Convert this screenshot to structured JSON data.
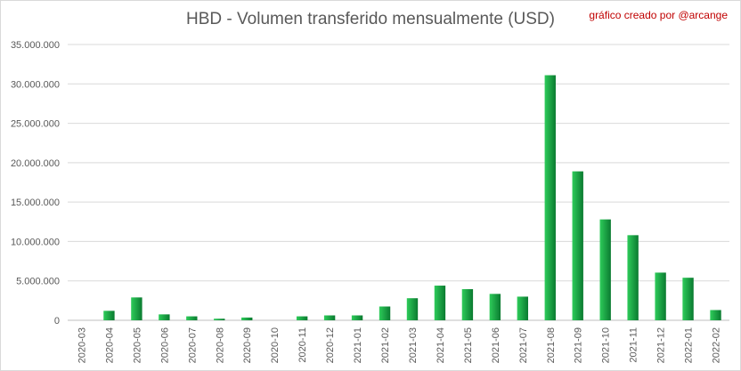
{
  "chart_data": {
    "type": "bar",
    "title": "HBD - Volumen transferido mensualmente (USD)",
    "credit": "gráfico creado por @arcange",
    "xlabel": "",
    "ylabel": "",
    "ylim": [
      0,
      35000000
    ],
    "yticks": [
      0,
      5000000,
      10000000,
      15000000,
      20000000,
      25000000,
      30000000,
      35000000
    ],
    "ytick_labels": [
      "0",
      "5.000.000",
      "10.000.000",
      "15.000.000",
      "20.000.000",
      "25.000.000",
      "30.000.000",
      "35.000.000"
    ],
    "grid": true,
    "legend": "none",
    "bar_color_light": "#2ecc5a",
    "bar_color_dark": "#0a7a30",
    "categories": [
      "2020-03",
      "2020-04",
      "2020-05",
      "2020-06",
      "2020-07",
      "2020-08",
      "2020-09",
      "2020-10",
      "2020-11",
      "2020-12",
      "2021-01",
      "2021-02",
      "2021-03",
      "2021-04",
      "2021-05",
      "2021-06",
      "2021-07",
      "2021-08",
      "2021-09",
      "2021-10",
      "2021-11",
      "2021-12",
      "2022-01",
      "2022-02"
    ],
    "values": [
      0,
      1200000,
      2900000,
      750000,
      500000,
      200000,
      350000,
      0,
      500000,
      620000,
      620000,
      1750000,
      2800000,
      4400000,
      3950000,
      3350000,
      3000000,
      31100000,
      18900000,
      12800000,
      10800000,
      6050000,
      5400000,
      1300000
    ]
  }
}
